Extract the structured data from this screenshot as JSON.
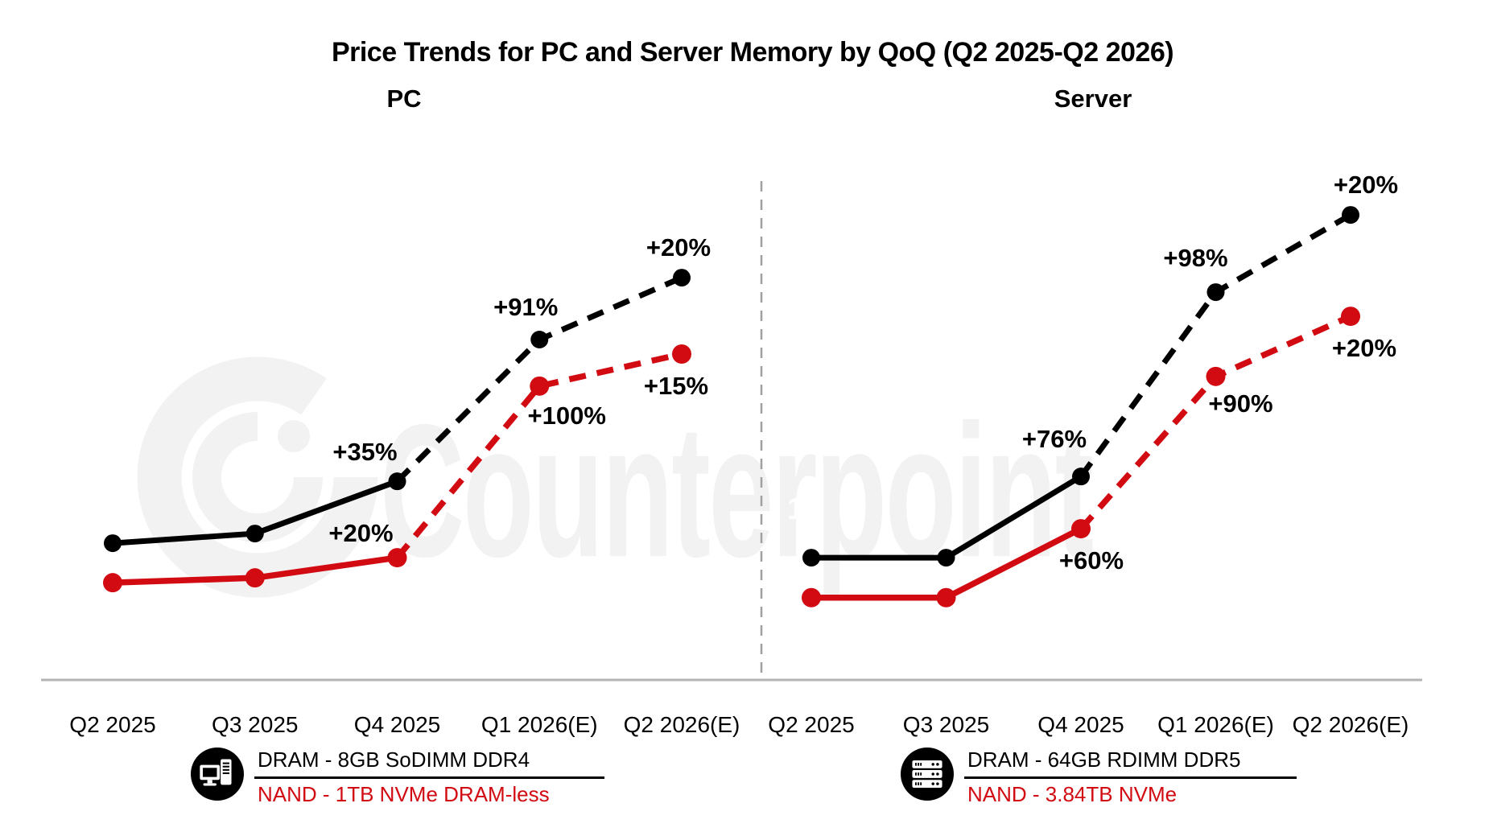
{
  "title": "Price Trends for PC and Server Memory by QoQ (Q2 2025-Q2 2026)",
  "watermark": {
    "brand": "Counterpoint",
    "superscript": "10"
  },
  "colors": {
    "dram_black": "#000000",
    "nand_red": "#d20a11",
    "axis_gray": "#b3b3b3",
    "separator_gray": "#a0a0a0",
    "watermark_gray": "#f2f2f2"
  },
  "icons": {
    "pc_legend_icon": "desktop-pc-icon",
    "server_legend_icon": "server-rack-icon"
  },
  "chart_data": [
    {
      "type": "line",
      "panel": "PC",
      "x": [
        "Q2 2025",
        "Q3 2025",
        "Q4 2025",
        "Q1 2026(E)",
        "Q2 2026(E)"
      ],
      "estimated_from_index": 3,
      "ylim": [
        0,
        110
      ],
      "grid": false,
      "legend_position": "bottom",
      "series": [
        {
          "name": "DRAM - 8GB SoDIMM DDR4",
          "color": "#000000",
          "style": "solid-actuals-dashed-estimates",
          "levels": [
            22.9,
            25.1,
            37.0,
            69.3,
            83.4
          ],
          "qoq_change_pct": [
            null,
            null,
            35,
            91,
            20
          ],
          "qoq_labels": [
            "",
            "",
            "+35%",
            "+91%",
            "+20%"
          ]
        },
        {
          "name": "NAND - 1TB NVMe DRAM-less",
          "color": "#d20a11",
          "style": "solid-actuals-dashed-estimates",
          "levels": [
            13.9,
            15.0,
            19.6,
            58.7,
            66.0
          ],
          "qoq_change_pct": [
            null,
            null,
            20,
            100,
            15
          ],
          "qoq_labels": [
            "",
            "",
            "+20%",
            "+100%",
            "+15%"
          ]
        }
      ]
    },
    {
      "type": "line",
      "panel": "Server",
      "x": [
        "Q2 2025",
        "Q3 2025",
        "Q4 2025",
        "Q1 2026(E)",
        "Q2 2026(E)"
      ],
      "estimated_from_index": 3,
      "ylim": [
        0,
        110
      ],
      "grid": false,
      "legend_position": "bottom",
      "series": [
        {
          "name": "DRAM - 64GB RDIMM DDR5",
          "color": "#000000",
          "style": "solid-actuals-dashed-estimates",
          "levels": [
            19.6,
            19.6,
            38.1,
            80.1,
            97.7
          ],
          "qoq_change_pct": [
            null,
            null,
            76,
            98,
            20
          ],
          "qoq_labels": [
            "",
            "",
            "+76%",
            "+98%",
            "+20%"
          ]
        },
        {
          "name": "NAND - 3.84TB NVMe",
          "color": "#d20a11",
          "style": "solid-actuals-dashed-estimates",
          "levels": [
            10.5,
            10.5,
            26.2,
            60.9,
            74.6
          ],
          "qoq_change_pct": [
            null,
            null,
            60,
            90,
            20
          ],
          "qoq_labels": [
            "",
            "",
            "+60%",
            "+90%",
            "+20%"
          ]
        }
      ]
    }
  ]
}
